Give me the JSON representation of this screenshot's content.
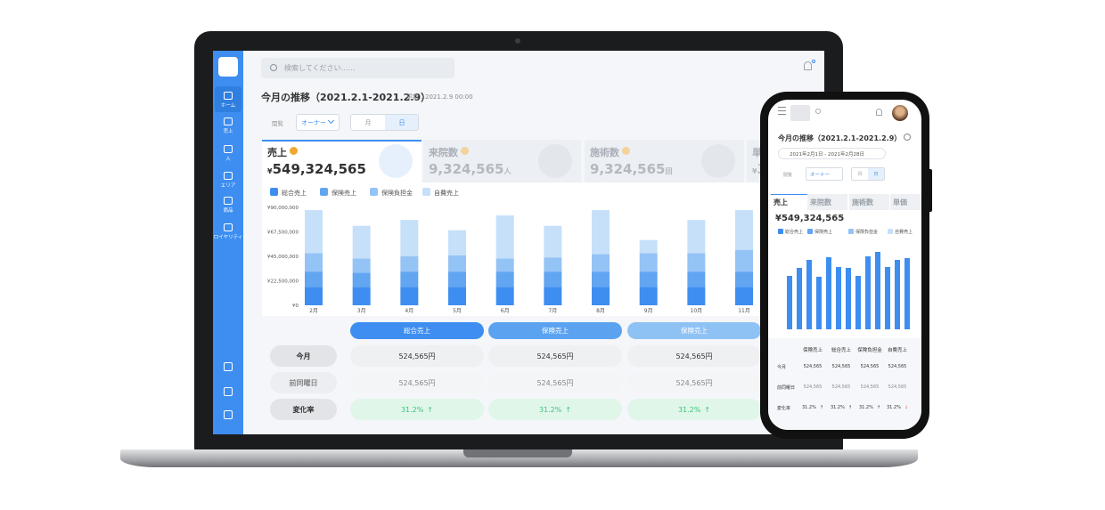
{
  "laptop": {
    "sidebar": [
      "ホーム",
      "売上",
      "人",
      "エリア",
      "商品",
      "ロイヤリティ"
    ],
    "search_placeholder": "検索してください……",
    "title": "今月の推移（2021.2.1-2021.2.9）",
    "updated": "更新：2021.2.9 00:00",
    "filters": {
      "label": "閲覧",
      "role": "オーナー",
      "periods": [
        "月",
        "日"
      ]
    },
    "kpis": [
      {
        "label": "売上",
        "prefix": "¥",
        "value": "549,324,565"
      },
      {
        "label": "来院数",
        "value": "9,324,565",
        "unit": "人"
      },
      {
        "label": "施術数",
        "value": "9,324,565",
        "unit": "回"
      },
      {
        "label": "単",
        "prefix": "¥",
        "value": "3"
      }
    ],
    "chart": {
      "type": "bar",
      "stacked": true,
      "categories": [
        "2月",
        "3月",
        "4月",
        "5月",
        "6月",
        "7月",
        "8月",
        "9月",
        "10月",
        "11月"
      ],
      "series": [
        {
          "name": "総合売上",
          "color": "#3d8ef0",
          "values": [
            17000000,
            17000000,
            17000000,
            17000000,
            17000000,
            17000000,
            17000000,
            17000000,
            17000000,
            17000000
          ]
        },
        {
          "name": "保険売上",
          "color": "#62a5f1",
          "values": [
            14000000,
            13000000,
            14000000,
            14000000,
            14000000,
            14000000,
            14000000,
            14000000,
            14000000,
            14000000
          ]
        },
        {
          "name": "保険負担金",
          "color": "#94c3f5",
          "values": [
            17000000,
            13000000,
            14000000,
            15000000,
            12000000,
            13000000,
            16000000,
            17000000,
            17000000,
            20000000
          ]
        },
        {
          "name": "自費売上",
          "color": "#c6e0fa",
          "values": [
            39500000,
            30000000,
            33500000,
            23000000,
            39600000,
            29000000,
            40500000,
            12000000,
            30500000,
            36500000
          ]
        }
      ],
      "ylim": [
        0,
        90000000
      ],
      "yticks": [
        {
          "value": 0,
          "label": "¥0"
        },
        {
          "value": 22500000,
          "label": "¥22,500,000"
        },
        {
          "value": 45000000,
          "label": "¥45,000,000"
        },
        {
          "value": 67500000,
          "label": "¥67,500,000"
        },
        {
          "value": 90000000,
          "label": "¥90,000,000"
        }
      ]
    },
    "table": {
      "headers": [
        "総合売上",
        "保険売上",
        "保険売上"
      ],
      "rows": [
        {
          "label": "今月",
          "cells": [
            "524,565円",
            "524,565円",
            "524,565円"
          ]
        },
        {
          "label": "前同曜日",
          "cells": [
            "524,565円",
            "524,565円",
            "524,565円"
          ]
        },
        {
          "label": "変化率",
          "cells": [
            {
              "value": "31.2%",
              "arrow": "↑"
            },
            {
              "value": "31.2%",
              "arrow": "↑"
            },
            {
              "value": "31.2%",
              "arrow": "↑"
            }
          ]
        }
      ]
    }
  },
  "phone": {
    "title": "今月の推移（2021.2.1-2021.2.9）",
    "date_range": "2021年2月1日 - 2021年2月28日",
    "filters": {
      "label": "閲覧",
      "role": "オーナー",
      "periods": [
        "月",
        "日"
      ]
    },
    "tabs": [
      "売上",
      "来院数",
      "施術数",
      "単価"
    ],
    "total": "¥549,324,565",
    "legend": [
      "総合売上",
      "保険売上",
      "保険負担金",
      "自費売上"
    ],
    "chart": {
      "type": "bar",
      "color": "#3d8ef0",
      "values": [
        60700000,
        69800000,
        78900000,
        59700000,
        81900000,
        70800000,
        69800000,
        60700000,
        82900000,
        88000000,
        70800000,
        78900000,
        80900000
      ],
      "ylim": [
        0,
        90000000
      ]
    },
    "table": {
      "headers": [
        "保険売上",
        "総合売上",
        "保険負担金",
        "自費売上"
      ],
      "rows": [
        {
          "label": "今月",
          "cells": [
            "524,565",
            "524,565",
            "524,565",
            "524,565"
          ]
        },
        {
          "label": "前同曜日",
          "cells": [
            "524,565",
            "524,565",
            "524,565",
            "524,565"
          ]
        },
        {
          "label": "変化率",
          "cells": [
            {
              "value": "31.2%",
              "arrow": "↑"
            },
            {
              "value": "31.2%",
              "arrow": "↑"
            },
            {
              "value": "31.2%",
              "arrow": "↑"
            },
            {
              "value": "31.2%",
              "arrow": "↓"
            }
          ]
        }
      ]
    }
  }
}
